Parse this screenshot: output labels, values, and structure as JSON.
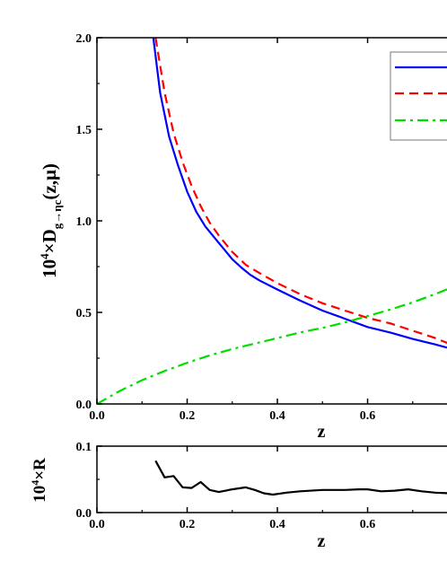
{
  "chart_data": [
    {
      "type": "line",
      "xlabel": "z",
      "ylabel": {
        "prefix": "10",
        "exponent": "4",
        "times": "×D",
        "subscript": "g→ηc",
        "suffix": "(z,μ)"
      },
      "xlim": [
        0.0,
        0.78
      ],
      "ylim": [
        0.0,
        2.0
      ],
      "xticks": [
        "0.0",
        "0.2",
        "0.4",
        "0.6"
      ],
      "yticks": [
        "0.0",
        "0.5",
        "1.0",
        "1.5",
        "2.0"
      ],
      "legend_position": "top-right",
      "series": [
        {
          "color": "#0000ff",
          "dash": "solid",
          "x": [
            0.125,
            0.14,
            0.16,
            0.18,
            0.2,
            0.22,
            0.24,
            0.26,
            0.28,
            0.3,
            0.32,
            0.34,
            0.36,
            0.4,
            0.45,
            0.5,
            0.55,
            0.6,
            0.65,
            0.7,
            0.75,
            0.78
          ],
          "y": [
            2.0,
            1.7,
            1.46,
            1.3,
            1.16,
            1.05,
            0.97,
            0.91,
            0.85,
            0.79,
            0.745,
            0.705,
            0.675,
            0.625,
            0.565,
            0.51,
            0.465,
            0.42,
            0.39,
            0.355,
            0.325,
            0.305
          ]
        },
        {
          "color": "#ff0000",
          "dash": "dashed",
          "x": [
            0.13,
            0.15,
            0.17,
            0.19,
            0.21,
            0.23,
            0.25,
            0.27,
            0.3,
            0.33,
            0.36,
            0.4,
            0.45,
            0.5,
            0.55,
            0.6,
            0.65,
            0.7,
            0.75,
            0.78
          ],
          "y": [
            2.0,
            1.7,
            1.48,
            1.32,
            1.19,
            1.08,
            0.99,
            0.92,
            0.83,
            0.76,
            0.715,
            0.66,
            0.6,
            0.55,
            0.51,
            0.47,
            0.44,
            0.4,
            0.36,
            0.33
          ]
        },
        {
          "color": "#00dd00",
          "dash": "dash-dot",
          "x": [
            0.0,
            0.05,
            0.1,
            0.15,
            0.2,
            0.25,
            0.3,
            0.35,
            0.4,
            0.45,
            0.5,
            0.55,
            0.6,
            0.65,
            0.7,
            0.75,
            0.78
          ],
          "y": [
            0.0,
            0.07,
            0.13,
            0.18,
            0.225,
            0.265,
            0.3,
            0.33,
            0.36,
            0.39,
            0.415,
            0.445,
            0.48,
            0.515,
            0.555,
            0.6,
            0.63
          ]
        }
      ]
    },
    {
      "type": "line",
      "xlabel": "z",
      "ylabel": {
        "prefix": "10",
        "exponent": "4",
        "times": "×R"
      },
      "xlim": [
        0.0,
        0.78
      ],
      "ylim": [
        0.0,
        0.1
      ],
      "xticks": [
        "0.0",
        "0.2",
        "0.4",
        "0.6"
      ],
      "yticks": [
        "0.0",
        "0.1"
      ],
      "series": [
        {
          "color": "#000000",
          "dash": "solid",
          "x": [
            0.13,
            0.15,
            0.17,
            0.19,
            0.21,
            0.23,
            0.25,
            0.27,
            0.3,
            0.33,
            0.35,
            0.37,
            0.39,
            0.42,
            0.45,
            0.5,
            0.55,
            0.58,
            0.6,
            0.63,
            0.66,
            0.69,
            0.72,
            0.75,
            0.78
          ],
          "y": [
            0.078,
            0.053,
            0.055,
            0.038,
            0.037,
            0.046,
            0.034,
            0.031,
            0.035,
            0.038,
            0.034,
            0.029,
            0.027,
            0.03,
            0.032,
            0.034,
            0.034,
            0.035,
            0.035,
            0.032,
            0.033,
            0.035,
            0.032,
            0.03,
            0.029
          ]
        }
      ]
    }
  ]
}
